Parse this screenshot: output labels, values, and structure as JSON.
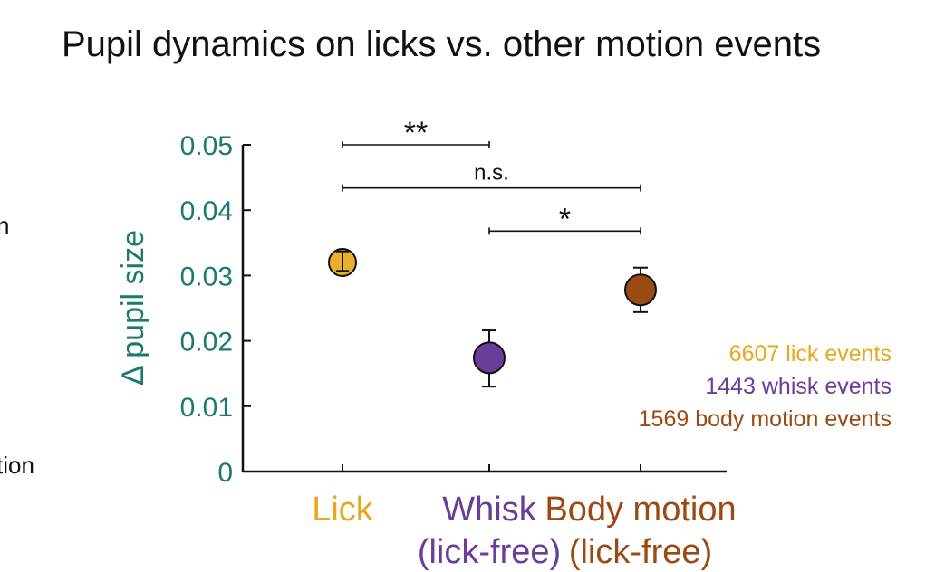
{
  "chart_data": {
    "type": "scatter",
    "title": "Pupil dynamics on licks vs. other motion events",
    "ylabel": "Δ pupil size",
    "xlabel": "",
    "ylim": [
      0,
      0.05
    ],
    "yticks": [
      "0",
      "0.01",
      "0.02",
      "0.03",
      "0.04",
      "0.05"
    ],
    "categories": [
      {
        "label": "Lick",
        "sublabel": "",
        "color": "#e8a81c",
        "mean": 0.032,
        "err_low": 0.0307,
        "err_high": 0.0337
      },
      {
        "label": "Whisk",
        "sublabel": "(lick-free)",
        "color": "#6a3d9a",
        "mean": 0.0174,
        "err_low": 0.013,
        "err_high": 0.0216
      },
      {
        "label": "Body motion",
        "sublabel": "(lick-free)",
        "color": "#9a4a12",
        "mean": 0.0278,
        "err_low": 0.0244,
        "err_high": 0.0312
      }
    ],
    "significance": [
      {
        "from": 0,
        "to": 1,
        "label": "**",
        "y": 0.05
      },
      {
        "from": 0,
        "to": 2,
        "label": "n.s.",
        "y": 0.0434
      },
      {
        "from": 1,
        "to": 2,
        "label": "*",
        "y": 0.0368
      }
    ],
    "legend": [
      {
        "text": "6607 lick events",
        "color": "#e8a81c"
      },
      {
        "text": "1443 whisk events",
        "color": "#6a3d9a"
      },
      {
        "text": "1569 body motion events",
        "color": "#9a4a12"
      }
    ],
    "left_edge_fragments": [
      "n",
      "tion"
    ],
    "axis_color": "#111111",
    "ylabel_color": "#1a7a6b"
  }
}
